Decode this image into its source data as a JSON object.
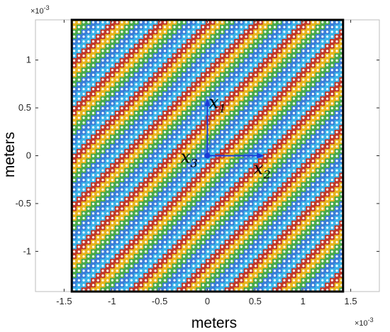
{
  "chart_data": {
    "type": "scatter",
    "title": "",
    "xlabel": "meters",
    "ylabel": "meters",
    "xlim": [
      -1.8,
      1.8
    ],
    "ylim": [
      -1.42,
      1.42
    ],
    "x_exponent": "×10",
    "x_exponent_power": "-3",
    "y_exponent": "×10",
    "y_exponent_power": "-3",
    "xticks": [
      -1.5,
      -1,
      -0.5,
      0,
      0.5,
      1,
      1.5
    ],
    "xtick_labels": [
      "-1.5",
      "-1",
      "-0.5",
      "0",
      "0.5",
      "1",
      "1.5"
    ],
    "yticks": [
      -1,
      -0.5,
      0,
      0.5,
      1
    ],
    "ytick_labels": [
      "-1",
      "-0.5",
      "0",
      "0.5",
      "1"
    ],
    "pattern": {
      "extent": [
        -1.42,
        1.42
      ],
      "pitch": 0.05,
      "colors": [
        "#e8b41e",
        "#e8b41e",
        "#4aab4a",
        "#4aab4a",
        "#3a7ed8",
        "#3a7ed8",
        "#3ab2e8",
        "#3ab2e8",
        "#c0392b",
        "#c0392b"
      ],
      "hole_color": "#ffffff"
    },
    "coordinate_axes": {
      "origin": [
        0,
        0
      ],
      "x1_end": [
        0,
        0.6
      ],
      "x2_end": [
        0.6,
        0
      ],
      "color": "#1a3ad8",
      "labels": {
        "x1": {
          "name": "x",
          "sub": "1"
        },
        "x2": {
          "name": "x",
          "sub": "2"
        },
        "x3": {
          "name": "x",
          "sub": "3"
        }
      }
    },
    "grid": false
  }
}
